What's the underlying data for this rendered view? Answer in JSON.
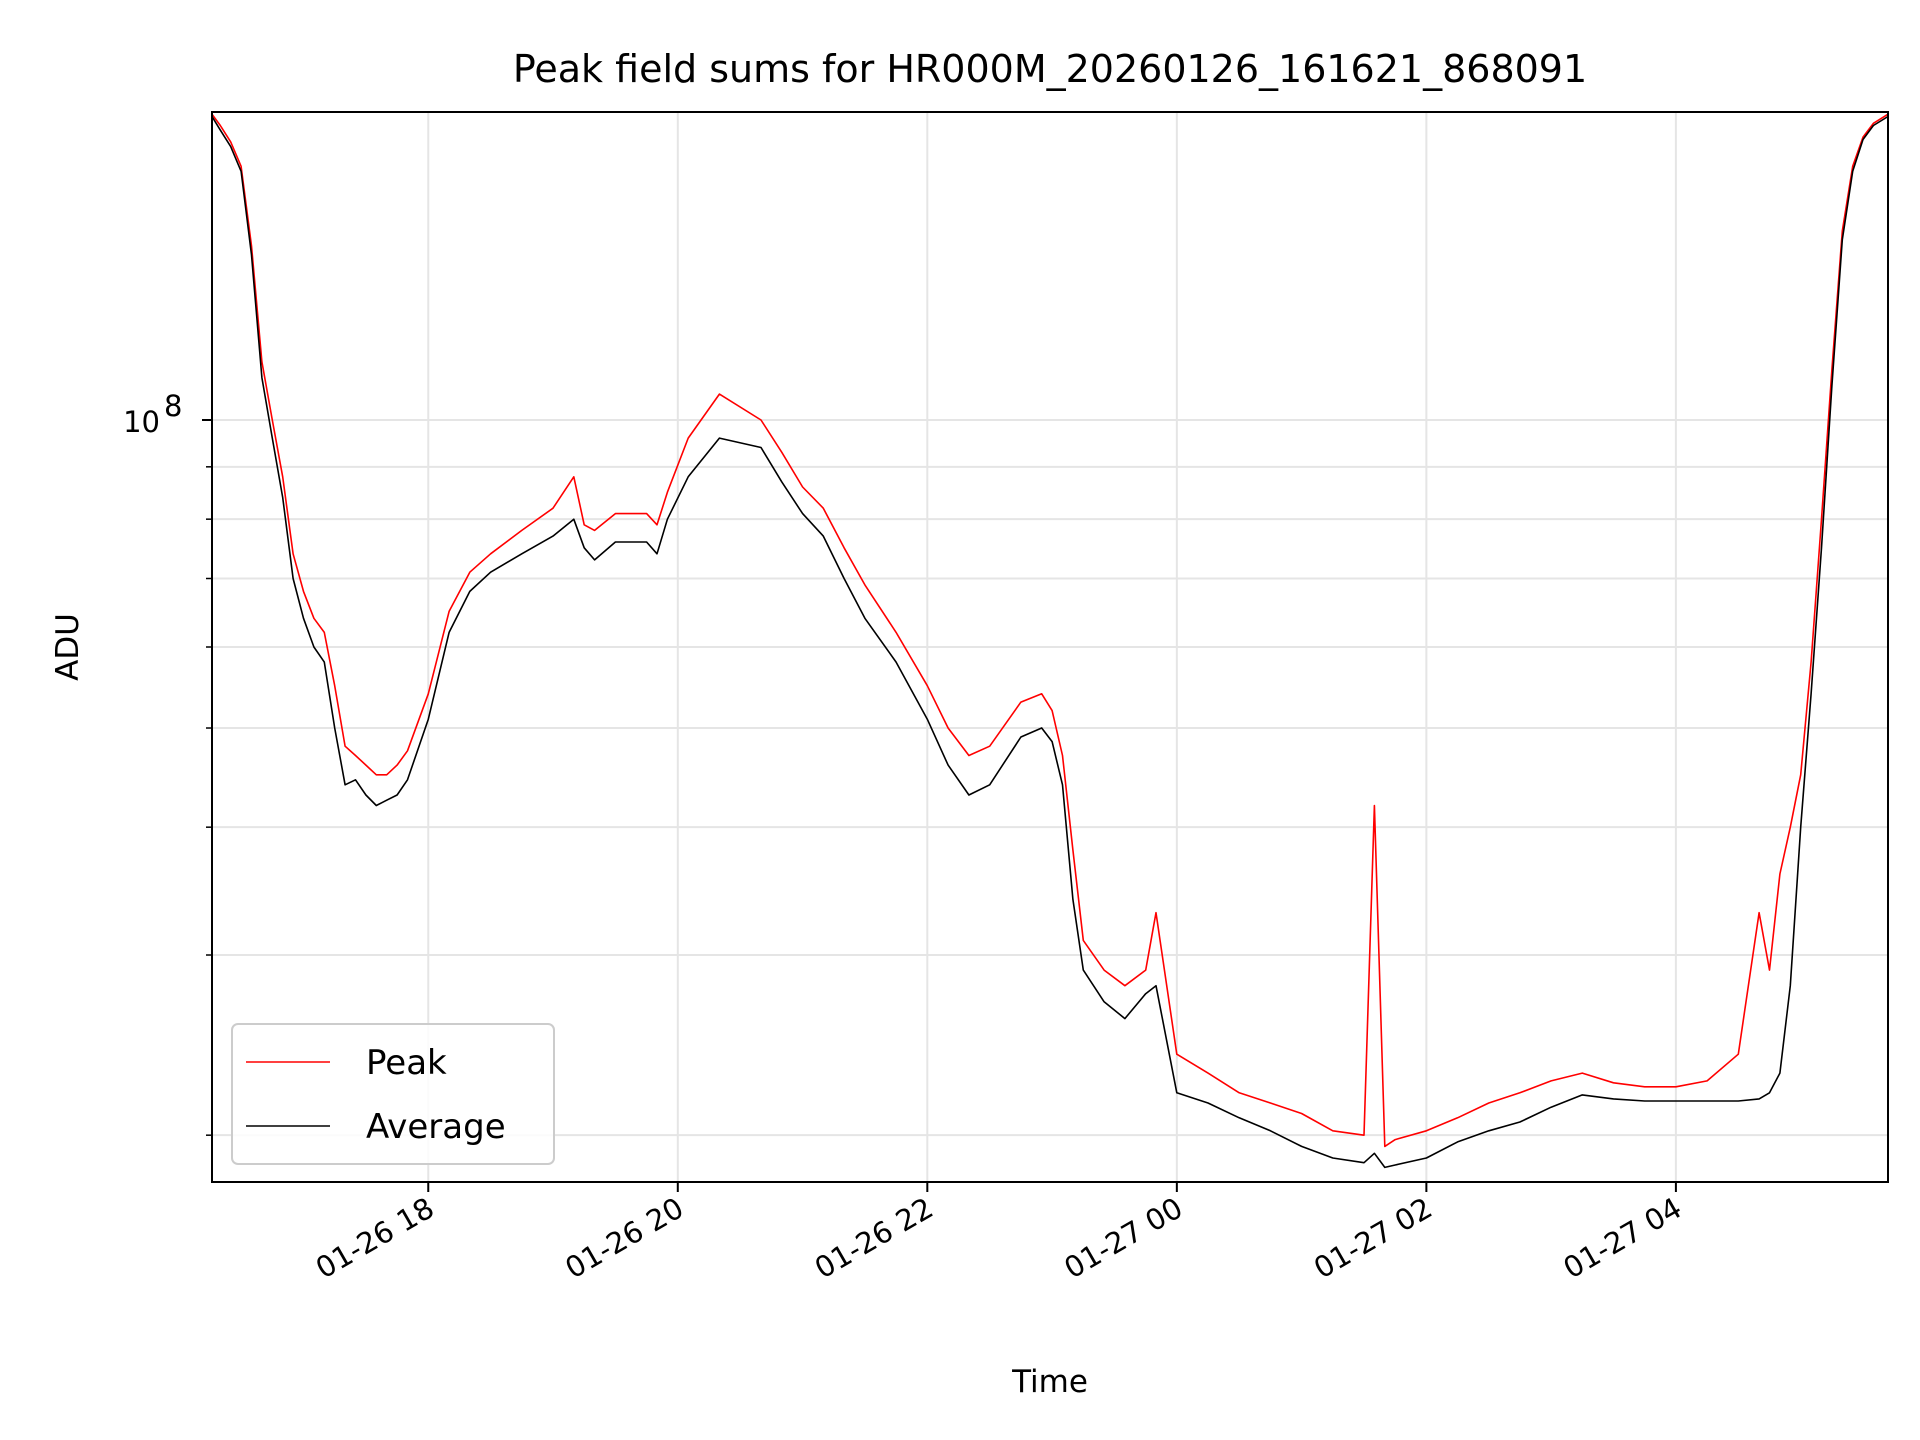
{
  "chart_data": {
    "type": "line",
    "title": "Peak field sums for HR000M_20260126_161621_868091",
    "xlabel": "Time",
    "ylabel": "ADU",
    "yscale": "log",
    "ylim": [
      18000000,
      200000000
    ],
    "y_major_tick_labels": [
      {
        "value": 100000000,
        "base": "10",
        "exp": "8"
      }
    ],
    "y_minor_ticks": [
      20000000,
      30000000,
      40000000,
      50000000,
      60000000,
      70000000,
      80000000,
      90000000
    ],
    "xlim": [
      "2026-01-26 16:16",
      "2026-01-27 05:42"
    ],
    "x_ticks": [
      {
        "value": "2026-01-26 18:00",
        "label": "01-26 18"
      },
      {
        "value": "2026-01-26 20:00",
        "label": "01-26 20"
      },
      {
        "value": "2026-01-26 22:00",
        "label": "01-26 22"
      },
      {
        "value": "2026-01-27 00:00",
        "label": "01-27 00"
      },
      {
        "value": "2026-01-27 02:00",
        "label": "01-27 02"
      },
      {
        "value": "2026-01-27 04:00",
        "label": "01-27 04"
      }
    ],
    "grid": true,
    "legend_position": "lower-left",
    "series": [
      {
        "name": "Average",
        "color": "#000000",
        "x": [
          "2026-01-26 16:16",
          "2026-01-26 16:20",
          "2026-01-26 16:25",
          "2026-01-26 16:30",
          "2026-01-26 16:35",
          "2026-01-26 16:40",
          "2026-01-26 16:45",
          "2026-01-26 16:50",
          "2026-01-26 16:55",
          "2026-01-26 17:00",
          "2026-01-26 17:05",
          "2026-01-26 17:10",
          "2026-01-26 17:15",
          "2026-01-26 17:20",
          "2026-01-26 17:25",
          "2026-01-26 17:30",
          "2026-01-26 17:35",
          "2026-01-26 17:40",
          "2026-01-26 17:45",
          "2026-01-26 17:50",
          "2026-01-26 18:00",
          "2026-01-26 18:10",
          "2026-01-26 18:20",
          "2026-01-26 18:30",
          "2026-01-26 18:45",
          "2026-01-26 19:00",
          "2026-01-26 19:10",
          "2026-01-26 19:15",
          "2026-01-26 19:20",
          "2026-01-26 19:30",
          "2026-01-26 19:45",
          "2026-01-26 19:50",
          "2026-01-26 19:55",
          "2026-01-26 20:05",
          "2026-01-26 20:20",
          "2026-01-26 20:40",
          "2026-01-26 20:50",
          "2026-01-26 21:00",
          "2026-01-26 21:10",
          "2026-01-26 21:20",
          "2026-01-26 21:30",
          "2026-01-26 21:45",
          "2026-01-26 22:00",
          "2026-01-26 22:10",
          "2026-01-26 22:20",
          "2026-01-26 22:30",
          "2026-01-26 22:45",
          "2026-01-26 22:55",
          "2026-01-26 23:00",
          "2026-01-26 23:05",
          "2026-01-26 23:10",
          "2026-01-26 23:15",
          "2026-01-26 23:25",
          "2026-01-26 23:35",
          "2026-01-26 23:45",
          "2026-01-26 23:50",
          "2026-01-27 00:00",
          "2026-01-27 00:15",
          "2026-01-27 00:30",
          "2026-01-27 00:45",
          "2026-01-27 01:00",
          "2026-01-27 01:15",
          "2026-01-27 01:30",
          "2026-01-27 01:35",
          "2026-01-27 01:40",
          "2026-01-27 01:45",
          "2026-01-27 02:00",
          "2026-01-27 02:15",
          "2026-01-27 02:30",
          "2026-01-27 02:45",
          "2026-01-27 03:00",
          "2026-01-27 03:15",
          "2026-01-27 03:30",
          "2026-01-27 03:45",
          "2026-01-27 04:00",
          "2026-01-27 04:15",
          "2026-01-27 04:30",
          "2026-01-27 04:40",
          "2026-01-27 04:45",
          "2026-01-27 04:50",
          "2026-01-27 04:55",
          "2026-01-27 05:00",
          "2026-01-27 05:05",
          "2026-01-27 05:10",
          "2026-01-27 05:15",
          "2026-01-27 05:20",
          "2026-01-27 05:25",
          "2026-01-27 05:30",
          "2026-01-27 05:35",
          "2026-01-27 05:42"
        ],
        "values": [
          198000000,
          192000000,
          185000000,
          175000000,
          145000000,
          110000000,
          96000000,
          84000000,
          70000000,
          64000000,
          60000000,
          58000000,
          50000000,
          44000000,
          44500000,
          43000000,
          42000000,
          42500000,
          43000000,
          44500000,
          51000000,
          62000000,
          68000000,
          71000000,
          74000000,
          77000000,
          80000000,
          75000000,
          73000000,
          76000000,
          76000000,
          74000000,
          80000000,
          88000000,
          96000000,
          94000000,
          87000000,
          81000000,
          77000000,
          70000000,
          64000000,
          58000000,
          51000000,
          46000000,
          43000000,
          44000000,
          49000000,
          50000000,
          48500000,
          44000000,
          34000000,
          29000000,
          27000000,
          26000000,
          27500000,
          28000000,
          22000000,
          21500000,
          20800000,
          20200000,
          19500000,
          19000000,
          18800000,
          19200000,
          18600000,
          18700000,
          19000000,
          19700000,
          20200000,
          20600000,
          21300000,
          21900000,
          21700000,
          21600000,
          21600000,
          21600000,
          21600000,
          21700000,
          22000000,
          23000000,
          28000000,
          40000000,
          54000000,
          75000000,
          108000000,
          150000000,
          175000000,
          188000000,
          194000000,
          198000000
        ]
      },
      {
        "name": "Peak",
        "color": "#ff0000",
        "x": [
          "2026-01-26 16:16",
          "2026-01-26 16:20",
          "2026-01-26 16:25",
          "2026-01-26 16:30",
          "2026-01-26 16:35",
          "2026-01-26 16:40",
          "2026-01-26 16:45",
          "2026-01-26 16:50",
          "2026-01-26 16:55",
          "2026-01-26 17:00",
          "2026-01-26 17:05",
          "2026-01-26 17:10",
          "2026-01-26 17:15",
          "2026-01-26 17:20",
          "2026-01-26 17:25",
          "2026-01-26 17:30",
          "2026-01-26 17:35",
          "2026-01-26 17:40",
          "2026-01-26 17:45",
          "2026-01-26 17:50",
          "2026-01-26 18:00",
          "2026-01-26 18:10",
          "2026-01-26 18:20",
          "2026-01-26 18:30",
          "2026-01-26 18:45",
          "2026-01-26 19:00",
          "2026-01-26 19:10",
          "2026-01-26 19:15",
          "2026-01-26 19:20",
          "2026-01-26 19:30",
          "2026-01-26 19:45",
          "2026-01-26 19:50",
          "2026-01-26 19:55",
          "2026-01-26 20:05",
          "2026-01-26 20:20",
          "2026-01-26 20:40",
          "2026-01-26 20:50",
          "2026-01-26 21:00",
          "2026-01-26 21:10",
          "2026-01-26 21:20",
          "2026-01-26 21:30",
          "2026-01-26 21:45",
          "2026-01-26 22:00",
          "2026-01-26 22:10",
          "2026-01-26 22:20",
          "2026-01-26 22:30",
          "2026-01-26 22:45",
          "2026-01-26 22:55",
          "2026-01-26 23:00",
          "2026-01-26 23:05",
          "2026-01-26 23:10",
          "2026-01-26 23:15",
          "2026-01-26 23:25",
          "2026-01-26 23:35",
          "2026-01-26 23:45",
          "2026-01-26 23:50",
          "2026-01-27 00:00",
          "2026-01-27 00:15",
          "2026-01-27 00:30",
          "2026-01-27 00:45",
          "2026-01-27 01:00",
          "2026-01-27 01:15",
          "2026-01-27 01:30",
          "2026-01-27 01:35",
          "2026-01-27 01:40",
          "2026-01-27 01:45",
          "2026-01-27 02:00",
          "2026-01-27 02:15",
          "2026-01-27 02:30",
          "2026-01-27 02:45",
          "2026-01-27 03:00",
          "2026-01-27 03:15",
          "2026-01-27 03:30",
          "2026-01-27 03:45",
          "2026-01-27 04:00",
          "2026-01-27 04:15",
          "2026-01-27 04:30",
          "2026-01-27 04:40",
          "2026-01-27 04:45",
          "2026-01-27 04:50",
          "2026-01-27 04:55",
          "2026-01-27 05:00",
          "2026-01-27 05:05",
          "2026-01-27 05:10",
          "2026-01-27 05:15",
          "2026-01-27 05:20",
          "2026-01-27 05:25",
          "2026-01-27 05:30",
          "2026-01-27 05:35",
          "2026-01-27 05:42"
        ],
        "values": [
          199000000,
          194000000,
          187000000,
          177000000,
          148000000,
          114000000,
          100000000,
          88000000,
          74000000,
          68000000,
          64000000,
          62000000,
          55000000,
          48000000,
          47000000,
          46000000,
          45000000,
          45000000,
          46000000,
          47500000,
          54000000,
          65000000,
          71000000,
          74000000,
          78000000,
          82000000,
          88000000,
          79000000,
          78000000,
          81000000,
          81000000,
          79000000,
          85000000,
          96000000,
          106000000,
          100000000,
          93000000,
          86000000,
          82000000,
          75000000,
          69000000,
          62000000,
          55000000,
          50000000,
          47000000,
          48000000,
          53000000,
          54000000,
          52000000,
          47000000,
          38000000,
          31000000,
          29000000,
          28000000,
          29000000,
          33000000,
          24000000,
          23000000,
          22000000,
          21500000,
          21000000,
          20200000,
          20000000,
          42000000,
          19500000,
          19800000,
          20200000,
          20800000,
          21500000,
          22000000,
          22600000,
          23000000,
          22500000,
          22300000,
          22300000,
          22600000,
          24000000,
          33000000,
          29000000,
          36000000,
          40000000,
          45000000,
          58000000,
          80000000,
          112000000,
          153000000,
          177000000,
          189000000,
          195000000,
          199000000
        ]
      }
    ]
  }
}
